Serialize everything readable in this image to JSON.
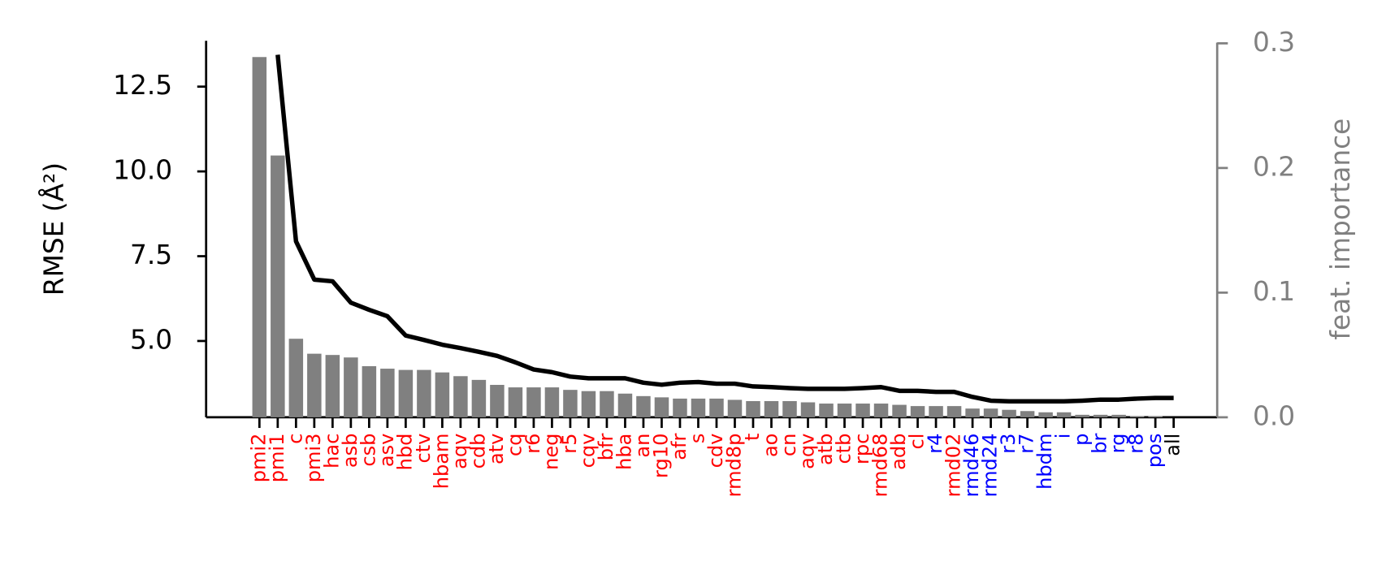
{
  "chart_data": {
    "type": "bar_line",
    "categories": [
      "pmi2",
      "pmi1",
      "c",
      "pmi3",
      "hac",
      "asb",
      "csb",
      "asv",
      "hbd",
      "ctv",
      "hbam",
      "aqv",
      "cdb",
      "atv",
      "cq",
      "r6",
      "neg",
      "r5",
      "cqv",
      "bfr",
      "hba",
      "an",
      "rg10",
      "afr",
      "s",
      "cdv",
      "rmd8p",
      "t",
      "ao",
      "cn",
      "aqv",
      "atb",
      "ctb",
      "rpc",
      "rmd68",
      "adb",
      "cl",
      "r4",
      "rmd02",
      "rmd46",
      "rmd24",
      "r3",
      "r7",
      "hbdm",
      "i",
      "p",
      "br",
      "rg",
      "r8",
      "pos",
      "all"
    ],
    "label_colors": [
      "red",
      "red",
      "red",
      "red",
      "red",
      "red",
      "red",
      "red",
      "red",
      "red",
      "red",
      "red",
      "red",
      "red",
      "red",
      "red",
      "red",
      "red",
      "red",
      "red",
      "red",
      "red",
      "red",
      "red",
      "red",
      "red",
      "red",
      "red",
      "red",
      "red",
      "red",
      "red",
      "red",
      "red",
      "red",
      "red",
      "red",
      "blue",
      "red",
      "blue",
      "blue",
      "blue",
      "blue",
      "blue",
      "blue",
      "blue",
      "blue",
      "blue",
      "blue",
      "blue",
      "black"
    ],
    "series": [
      {
        "name": "feat. importance",
        "kind": "bar",
        "axis": "y2",
        "color": "#808080",
        "values": [
          0.289,
          0.21,
          0.063,
          0.051,
          0.05,
          0.048,
          0.041,
          0.039,
          0.038,
          0.038,
          0.036,
          0.033,
          0.03,
          0.026,
          0.024,
          0.024,
          0.024,
          0.022,
          0.021,
          0.021,
          0.019,
          0.017,
          0.016,
          0.015,
          0.015,
          0.015,
          0.014,
          0.013,
          0.013,
          0.013,
          0.012,
          0.011,
          0.011,
          0.011,
          0.011,
          0.01,
          0.009,
          0.009,
          0.009,
          0.007,
          0.007,
          0.006,
          0.005,
          0.004,
          0.004,
          0.002,
          0.002,
          0.002,
          0.001,
          0.001,
          0
        ]
      },
      {
        "name": "RMSE",
        "kind": "line",
        "color": "#000000",
        "values": [
          null,
          13.44,
          7.94,
          6.81,
          6.76,
          6.13,
          5.92,
          5.73,
          5.16,
          5.03,
          4.89,
          4.79,
          4.68,
          4.56,
          4.37,
          4.16,
          4.08,
          3.95,
          3.9,
          3.9,
          3.9,
          3.77,
          3.71,
          3.77,
          3.79,
          3.74,
          3.74,
          3.66,
          3.64,
          3.61,
          3.59,
          3.59,
          3.59,
          3.61,
          3.64,
          3.53,
          3.53,
          3.5,
          3.5,
          3.35,
          3.24,
          3.22,
          3.22,
          3.22,
          3.22,
          3.24,
          3.27,
          3.27,
          3.3,
          3.32,
          3.32
        ]
      }
    ],
    "ylabel": "RMSE (Å²)",
    "y2label": "feat. importance",
    "ylim": [
      2.75,
      13.85
    ],
    "yticks": [
      {
        "value": 5,
        "label": "5.0"
      },
      {
        "value": 7.5,
        "label": "7.5"
      },
      {
        "value": 10,
        "label": "10.0"
      },
      {
        "value": 12.5,
        "label": "12.5"
      }
    ],
    "y2lim": [
      0,
      0.302
    ],
    "y2ticks": [
      {
        "value": 0,
        "label": "0.0"
      },
      0.1,
      0.2,
      0.3
    ],
    "y2color": "#808080"
  }
}
